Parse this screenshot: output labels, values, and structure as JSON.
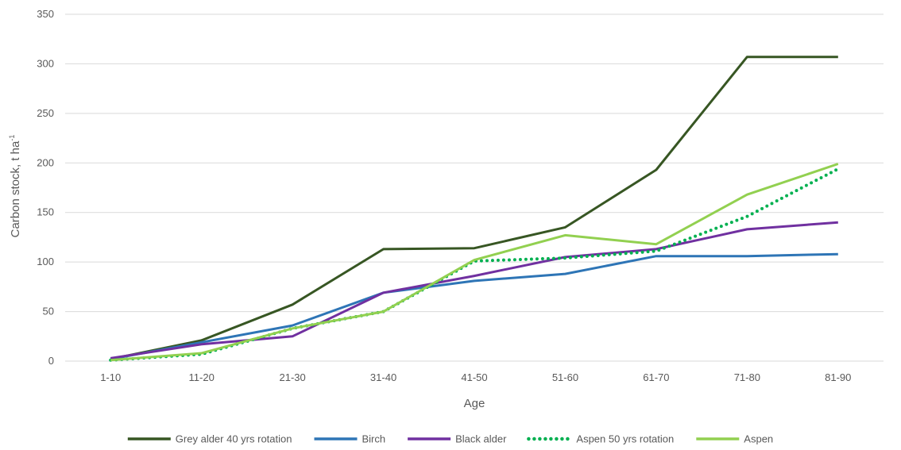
{
  "chart_data": {
    "type": "line",
    "title": "",
    "xlabel": "Age",
    "ylabel": "Carbon stock, t ha",
    "ylabel_superscript": "-1",
    "categories": [
      "1-10",
      "11-20",
      "21-30",
      "31-40",
      "41-50",
      "51-60",
      "61-70",
      "71-80",
      "81-90"
    ],
    "ylim": [
      0,
      350
    ],
    "yticks": [
      "0",
      "50",
      "100",
      "150",
      "200",
      "250",
      "300",
      "350"
    ],
    "grid": true,
    "legend_position": "bottom",
    "series": [
      {
        "name": "Grey alder 40 yrs rotation",
        "color": "#375623",
        "dash": "solid",
        "values": [
          2,
          21,
          57,
          113,
          114,
          135,
          193,
          307,
          307
        ]
      },
      {
        "name": "Birch",
        "color": "#2e75b6",
        "dash": "solid",
        "values": [
          2,
          19,
          36,
          69,
          81,
          88,
          106,
          106,
          108
        ]
      },
      {
        "name": "Black alder",
        "color": "#7030a0",
        "dash": "solid",
        "values": [
          3,
          17,
          25,
          69,
          86,
          105,
          113,
          133,
          140
        ]
      },
      {
        "name": "Aspen 50 yrs rotation",
        "color": "#00b050",
        "dash": "dotted",
        "values": [
          1,
          7,
          33,
          50,
          101,
          104,
          111,
          146,
          194
        ]
      },
      {
        "name": "Aspen",
        "color": "#92d050",
        "dash": "solid",
        "values": [
          1,
          8,
          33,
          50,
          102,
          127,
          118,
          168,
          199
        ]
      }
    ]
  }
}
